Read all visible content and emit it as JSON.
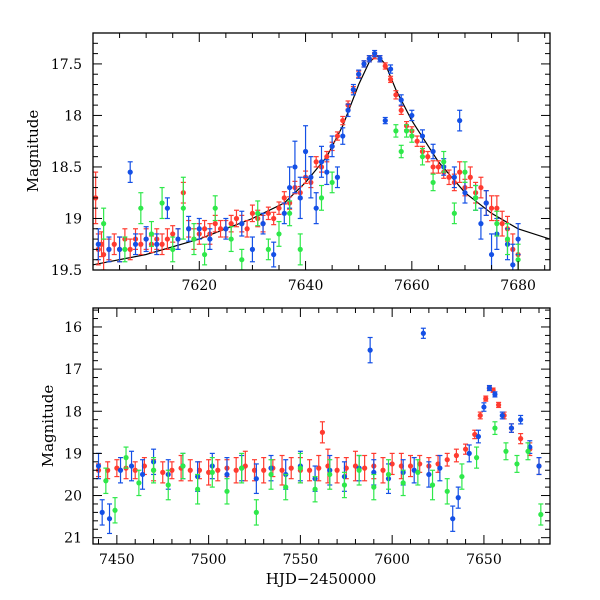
{
  "colors": {
    "red": "#ff3b30",
    "blue": "#1450e6",
    "green": "#2ee84a",
    "model": "#000000"
  },
  "chart_data": [
    {
      "type": "scatter",
      "title": "",
      "xlabel": "",
      "ylabel": "Magnitude",
      "xlim": [
        7600,
        7686
      ],
      "ylim": [
        19.5,
        17.2
      ],
      "y_inverted": true,
      "xticks": [
        7620,
        7640,
        7660,
        7680
      ],
      "yticks": [
        17.5,
        18,
        18.5,
        19,
        19.5
      ],
      "model_curve": {
        "x": [
          7600,
          7610,
          7620,
          7630,
          7636,
          7640,
          7644,
          7647,
          7650,
          7652,
          7653.5,
          7655,
          7657,
          7660,
          7665,
          7670,
          7675,
          7680,
          7686
        ],
        "y": [
          19.45,
          19.35,
          19.2,
          19.0,
          18.85,
          18.65,
          18.4,
          18.1,
          17.7,
          17.48,
          17.42,
          17.5,
          17.75,
          18.05,
          18.45,
          18.75,
          18.95,
          19.1,
          19.2
        ]
      },
      "series": [
        {
          "color": "red",
          "x": [
            7600.5,
            7601,
            7601.6,
            7602,
            7603,
            7604,
            7605,
            7606,
            7607,
            7608,
            7609,
            7610,
            7611,
            7612,
            7613,
            7614,
            7615,
            7616,
            7617,
            7618,
            7619,
            7620,
            7621,
            7622,
            7623,
            7624,
            7625,
            7626,
            7627,
            7628,
            7629,
            7630,
            7631,
            7632,
            7633,
            7634,
            7635,
            7636,
            7637,
            7638,
            7639,
            7640,
            7641,
            7642,
            7643,
            7644,
            7645,
            7646,
            7647,
            7648,
            7649,
            7650,
            7651,
            7652,
            7653,
            7654,
            7655,
            7656,
            7657,
            7658,
            7659,
            7660,
            7661,
            7662,
            7663,
            7664,
            7665,
            7666,
            7667,
            7668,
            7669,
            7670,
            7671,
            7672,
            7673,
            7674,
            7675,
            7676,
            7677,
            7678,
            7679,
            7680
          ],
          "y": [
            18.8,
            19.3,
            19.25,
            19.35,
            19.3,
            19.25,
            19.3,
            19.2,
            19.3,
            19.2,
            19.25,
            19.2,
            19.25,
            19.2,
            19.25,
            19.2,
            19.15,
            19.2,
            18.75,
            19.1,
            19.2,
            19.15,
            19.1,
            19.15,
            19.05,
            19.1,
            19.1,
            19.05,
            19.0,
            19.05,
            19.1,
            18.95,
            19.0,
            19.05,
            18.95,
            19.0,
            18.9,
            18.8,
            18.85,
            18.7,
            18.75,
            18.6,
            18.65,
            18.45,
            18.5,
            18.4,
            18.3,
            18.2,
            18.05,
            17.9,
            17.75,
            17.6,
            17.5,
            17.45,
            17.42,
            17.45,
            17.52,
            17.65,
            17.8,
            17.95,
            18.1,
            18.15,
            18.25,
            18.35,
            18.4,
            18.5,
            18.5,
            18.55,
            18.6,
            18.65,
            18.55,
            18.7,
            18.6,
            18.75,
            18.7,
            18.85,
            18.9,
            18.9,
            19.05,
            19.1,
            19.3,
            19.35
          ],
          "yerr": [
            0.25,
            0.15,
            0.12,
            0.15,
            0.1,
            0.1,
            0.12,
            0.1,
            0.1,
            0.1,
            0.1,
            0.1,
            0.08,
            0.1,
            0.1,
            0.1,
            0.08,
            0.1,
            0.1,
            0.08,
            0.1,
            0.1,
            0.08,
            0.1,
            0.08,
            0.08,
            0.08,
            0.08,
            0.08,
            0.08,
            0.08,
            0.08,
            0.08,
            0.08,
            0.06,
            0.06,
            0.06,
            0.06,
            0.06,
            0.06,
            0.06,
            0.06,
            0.05,
            0.05,
            0.05,
            0.05,
            0.04,
            0.04,
            0.04,
            0.04,
            0.03,
            0.03,
            0.03,
            0.03,
            0.03,
            0.03,
            0.03,
            0.03,
            0.04,
            0.04,
            0.04,
            0.04,
            0.05,
            0.05,
            0.05,
            0.06,
            0.06,
            0.06,
            0.07,
            0.08,
            0.1,
            0.08,
            0.1,
            0.1,
            0.1,
            0.12,
            0.12,
            0.12,
            0.12,
            0.12,
            0.15,
            0.15
          ]
        },
        {
          "color": "blue",
          "x": [
            7601,
            7603,
            7605,
            7607,
            7608,
            7610,
            7612,
            7614,
            7616,
            7618,
            7620,
            7622,
            7625,
            7628,
            7630,
            7632,
            7634,
            7636,
            7637,
            7638,
            7639,
            7640,
            7641,
            7642,
            7643,
            7644,
            7645,
            7646,
            7647,
            7648,
            7649,
            7650,
            7651,
            7652,
            7653,
            7654,
            7655,
            7656,
            7658,
            7660,
            7662,
            7664,
            7666,
            7668,
            7669,
            7670,
            7672,
            7673,
            7674,
            7675,
            7676,
            7678,
            7679,
            7680
          ],
          "y": [
            19.25,
            19.3,
            19.3,
            18.55,
            19.25,
            19.2,
            19.25,
            18.9,
            19.2,
            19.1,
            19.1,
            19.2,
            19.1,
            19.05,
            19.3,
            19.05,
            19.35,
            18.95,
            18.7,
            18.5,
            18.8,
            18.35,
            18.6,
            18.9,
            18.45,
            18.55,
            18.3,
            18.6,
            18.2,
            17.95,
            17.75,
            17.6,
            17.5,
            17.45,
            17.4,
            17.45,
            18.05,
            17.55,
            17.85,
            18.0,
            18.2,
            18.35,
            18.5,
            18.6,
            18.05,
            18.75,
            18.8,
            19.05,
            18.85,
            19.35,
            19.15,
            19.25,
            19.45,
            19.2
          ],
          "yerr": [
            0.15,
            0.12,
            0.12,
            0.1,
            0.1,
            0.12,
            0.1,
            0.1,
            0.1,
            0.12,
            0.1,
            0.1,
            0.1,
            0.12,
            0.12,
            0.1,
            0.12,
            0.1,
            0.2,
            0.25,
            0.2,
            0.25,
            0.2,
            0.15,
            0.15,
            0.12,
            0.1,
            0.1,
            0.08,
            0.06,
            0.05,
            0.04,
            0.03,
            0.03,
            0.03,
            0.03,
            0.03,
            0.04,
            0.05,
            0.05,
            0.06,
            0.07,
            0.08,
            0.1,
            0.1,
            0.1,
            0.12,
            0.15,
            0.12,
            0.2,
            0.15,
            0.15,
            0.2,
            0.15
          ]
        },
        {
          "color": "green",
          "x": [
            7602,
            7606,
            7609,
            7611,
            7613,
            7615,
            7617,
            7619,
            7621,
            7623,
            7626,
            7628,
            7631,
            7633,
            7635,
            7637,
            7639,
            7643,
            7645,
            7657,
            7658,
            7659,
            7660,
            7662,
            7664,
            7666,
            7668,
            7670,
            7672,
            7676,
            7678,
            7680
          ],
          "y": [
            19.05,
            19.3,
            18.9,
            19.15,
            18.85,
            19.3,
            18.9,
            19.2,
            19.35,
            18.9,
            19.2,
            19.4,
            18.95,
            19.3,
            19.15,
            18.95,
            19.3,
            18.8,
            18.65,
            18.15,
            18.35,
            18.15,
            18.2,
            18.4,
            18.65,
            18.45,
            18.95,
            18.55,
            18.8,
            19.05,
            19.2,
            19.4
          ],
          "yerr": [
            0.15,
            0.12,
            0.15,
            0.12,
            0.15,
            0.12,
            0.3,
            0.15,
            0.1,
            0.12,
            0.12,
            0.1,
            0.12,
            0.1,
            0.12,
            0.12,
            0.15,
            0.12,
            0.1,
            0.06,
            0.06,
            0.06,
            0.06,
            0.08,
            0.08,
            0.1,
            0.1,
            0.1,
            0.12,
            0.12,
            0.15,
            0.15
          ]
        }
      ]
    },
    {
      "type": "scatter",
      "title": "",
      "xlabel": "HJD−2450000",
      "ylabel": "Magnitude",
      "xlim": [
        7437,
        7686
      ],
      "ylim": [
        21.15,
        15.55
      ],
      "y_inverted": true,
      "xticks": [
        7450,
        7500,
        7550,
        7600,
        7650
      ],
      "yticks": [
        16,
        17,
        18,
        19,
        20,
        21
      ],
      "series": [
        {
          "color": "red",
          "x": [
            7440,
            7445,
            7450,
            7455,
            7460,
            7465,
            7470,
            7475,
            7480,
            7485,
            7490,
            7495,
            7500,
            7505,
            7510,
            7515,
            7520,
            7525,
            7530,
            7535,
            7540,
            7545,
            7550,
            7555,
            7560,
            7562,
            7565,
            7570,
            7575,
            7580,
            7585,
            7590,
            7595,
            7600,
            7605,
            7610,
            7615,
            7620,
            7625,
            7630,
            7635,
            7640,
            7645,
            7648,
            7651,
            7653,
            7655,
            7658,
            7661,
            7665,
            7670,
            7675,
            7680
          ],
          "y": [
            19.4,
            19.4,
            19.35,
            19.35,
            19.4,
            19.3,
            19.4,
            19.45,
            19.4,
            19.35,
            19.4,
            19.4,
            19.45,
            19.4,
            19.35,
            19.4,
            19.3,
            19.4,
            19.4,
            19.35,
            19.4,
            19.35,
            19.4,
            19.4,
            19.35,
            18.5,
            19.3,
            19.4,
            19.35,
            19.3,
            19.35,
            19.3,
            19.4,
            19.25,
            19.3,
            19.3,
            19.25,
            19.3,
            19.25,
            19.15,
            19.05,
            18.9,
            18.55,
            18.1,
            17.7,
            17.45,
            17.5,
            17.85,
            18.1,
            18.4,
            18.65,
            18.9,
            19.3
          ],
          "yerr": [
            0.15,
            0.2,
            0.2,
            0.25,
            0.2,
            0.2,
            0.25,
            0.25,
            0.2,
            0.3,
            0.25,
            0.2,
            0.3,
            0.25,
            0.2,
            0.3,
            0.35,
            0.25,
            0.3,
            0.2,
            0.35,
            0.25,
            0.3,
            0.25,
            0.3,
            0.25,
            0.4,
            0.3,
            0.25,
            0.35,
            0.3,
            0.3,
            0.3,
            0.25,
            0.3,
            0.25,
            0.2,
            0.2,
            0.2,
            0.15,
            0.15,
            0.12,
            0.1,
            0.08,
            0.06,
            0.05,
            0.05,
            0.06,
            0.08,
            0.1,
            0.12,
            0.15,
            0.2
          ]
        },
        {
          "color": "blue",
          "x": [
            7440,
            7442,
            7446,
            7452,
            7458,
            7464,
            7470,
            7478,
            7486,
            7494,
            7502,
            7510,
            7518,
            7526,
            7534,
            7542,
            7550,
            7558,
            7566,
            7574,
            7582,
            7588,
            7590,
            7598,
            7606,
            7612,
            7617,
            7620,
            7626,
            7633,
            7636,
            7642,
            7647,
            7650,
            7653,
            7656,
            7660,
            7665,
            7670,
            7675,
            7680
          ],
          "y": [
            19.3,
            20.4,
            20.55,
            19.4,
            19.3,
            19.5,
            19.2,
            19.5,
            19.3,
            19.55,
            19.3,
            19.5,
            19.35,
            19.6,
            19.35,
            19.5,
            19.3,
            19.6,
            19.4,
            19.55,
            19.35,
            16.55,
            19.45,
            19.6,
            19.45,
            19.4,
            16.15,
            19.5,
            19.35,
            20.55,
            20.05,
            19.0,
            18.6,
            17.9,
            17.45,
            17.6,
            18.1,
            18.4,
            18.2,
            18.85,
            19.3
          ],
          "yerr": [
            0.3,
            0.3,
            0.35,
            0.3,
            0.35,
            0.35,
            0.3,
            0.35,
            0.3,
            0.35,
            0.3,
            0.4,
            0.3,
            0.35,
            0.3,
            0.35,
            0.35,
            0.3,
            0.35,
            0.35,
            0.3,
            0.3,
            0.3,
            0.35,
            0.3,
            0.3,
            0.12,
            0.3,
            0.3,
            0.3,
            0.25,
            0.2,
            0.15,
            0.1,
            0.06,
            0.06,
            0.08,
            0.1,
            0.1,
            0.15,
            0.2
          ]
        },
        {
          "color": "green",
          "x": [
            7444,
            7449,
            7455,
            7462,
            7470,
            7478,
            7486,
            7494,
            7502,
            7510,
            7518,
            7526,
            7534,
            7542,
            7550,
            7558,
            7566,
            7574,
            7582,
            7590,
            7598,
            7606,
            7614,
            7622,
            7630,
            7638,
            7646,
            7656,
            7662,
            7668,
            7674,
            7681
          ],
          "y": [
            19.65,
            20.35,
            19.1,
            19.7,
            19.4,
            19.75,
            19.3,
            19.85,
            19.45,
            19.9,
            19.35,
            20.4,
            19.5,
            19.8,
            19.35,
            19.85,
            19.5,
            19.75,
            19.4,
            19.8,
            19.5,
            19.7,
            19.45,
            19.75,
            19.9,
            19.55,
            19.1,
            18.4,
            18.95,
            19.25,
            18.95,
            20.45
          ],
          "yerr": [
            0.3,
            0.3,
            0.25,
            0.3,
            0.3,
            0.35,
            0.3,
            0.35,
            0.35,
            0.3,
            0.35,
            0.3,
            0.35,
            0.3,
            0.35,
            0.3,
            0.35,
            0.3,
            0.35,
            0.3,
            0.35,
            0.3,
            0.3,
            0.35,
            0.3,
            0.3,
            0.25,
            0.15,
            0.2,
            0.2,
            0.2,
            0.25
          ]
        }
      ]
    }
  ]
}
